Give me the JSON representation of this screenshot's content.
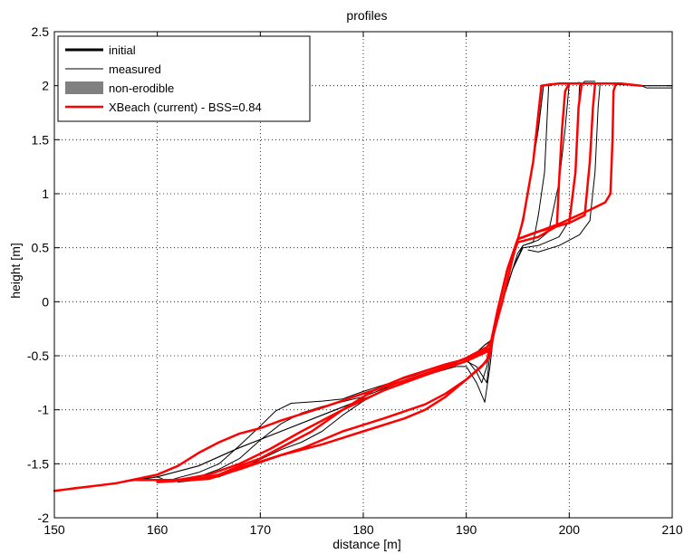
{
  "chart_data": {
    "type": "line",
    "title": "profiles",
    "xlabel": "distance [m]",
    "ylabel": "height [m]",
    "xlim": [
      150,
      210
    ],
    "ylim": [
      -2,
      2.5
    ],
    "xticks": [
      "150",
      "160",
      "170",
      "180",
      "190",
      "200",
      "210"
    ],
    "yticks": [
      "-2",
      "-1.5",
      "-1",
      "-0.5",
      "0",
      "0.5",
      "1",
      "1.5",
      "2",
      "2.5"
    ],
    "grid": true,
    "legend": {
      "placement": "top-left",
      "entries": [
        {
          "label": "initial",
          "style": "thick-black-line"
        },
        {
          "label": "measured",
          "style": "thin-black-line"
        },
        {
          "label": "non-erodible",
          "style": "gray-patch"
        },
        {
          "label": "XBeach (current) - BSS=0.84",
          "style": "red-line"
        }
      ]
    },
    "colors": {
      "initial": "#000000",
      "measured": "#000000",
      "non_erodible": "#808080",
      "xbeach": "#ff0000"
    },
    "series": [
      {
        "name": "initial",
        "kind": "initial",
        "points": [
          [
            150,
            -1.75
          ],
          [
            152,
            -1.73
          ],
          [
            156,
            -1.68
          ],
          [
            160,
            -1.62
          ],
          [
            164,
            -1.52
          ],
          [
            168,
            -1.35
          ],
          [
            172,
            -1.2
          ],
          [
            176,
            -1.05
          ],
          [
            180,
            -0.9
          ],
          [
            184,
            -0.75
          ],
          [
            188,
            -0.62
          ],
          [
            190,
            -0.55
          ],
          [
            191,
            -0.47
          ],
          [
            191.8,
            -0.4
          ],
          [
            192.5,
            -0.35
          ],
          [
            193.5,
            0
          ],
          [
            194.5,
            0.4
          ],
          [
            195.2,
            0.65
          ],
          [
            196,
            1
          ],
          [
            197,
            1.6
          ],
          [
            197.5,
            2
          ],
          [
            198,
            2.01
          ],
          [
            200,
            2.02
          ],
          [
            203,
            2.02
          ],
          [
            207,
            2
          ],
          [
            210,
            2
          ]
        ]
      },
      {
        "name": "measured",
        "kind": "measured",
        "points": [
          [
            150,
            -1.75
          ],
          [
            152,
            -1.72
          ],
          [
            156,
            -1.68
          ],
          [
            158,
            -1.65
          ],
          [
            160,
            -1.62
          ],
          [
            161,
            -1.66
          ],
          [
            162,
            -1.63
          ],
          [
            164,
            -1.58
          ],
          [
            166,
            -1.5
          ],
          [
            168,
            -1.33
          ],
          [
            170,
            -1.15
          ],
          [
            171.5,
            -1.01
          ],
          [
            173,
            -0.94
          ],
          [
            176,
            -0.92
          ],
          [
            178,
            -0.9
          ],
          [
            180,
            -0.83
          ],
          [
            182,
            -0.77
          ],
          [
            185,
            -0.68
          ],
          [
            188,
            -0.58
          ],
          [
            190,
            -0.53
          ],
          [
            191,
            -0.65
          ],
          [
            191.5,
            -0.75
          ],
          [
            192,
            -0.6
          ],
          [
            192.5,
            -0.3
          ],
          [
            193.5,
            0
          ],
          [
            194.5,
            0.3
          ],
          [
            195,
            0.45
          ],
          [
            195.5,
            0.52
          ],
          [
            196.5,
            0.55
          ],
          [
            197,
            0.8
          ],
          [
            197.6,
            1.2
          ],
          [
            198,
            2
          ],
          [
            198.5,
            2.01
          ]
        ]
      },
      {
        "name": "measured",
        "kind": "measured",
        "points": [
          [
            160,
            -1.65
          ],
          [
            162,
            -1.65
          ],
          [
            164,
            -1.62
          ],
          [
            166,
            -1.55
          ],
          [
            168,
            -1.45
          ],
          [
            170,
            -1.28
          ],
          [
            172,
            -1.13
          ],
          [
            174,
            -1.03
          ],
          [
            176,
            -0.97
          ],
          [
            180,
            -0.88
          ],
          [
            184,
            -0.73
          ],
          [
            188,
            -0.6
          ],
          [
            190,
            -0.55
          ],
          [
            191,
            -0.6
          ],
          [
            192,
            -0.75
          ],
          [
            192.5,
            -0.3
          ],
          [
            193.5,
            0
          ],
          [
            194.5,
            0.3
          ],
          [
            195.5,
            0.52
          ],
          [
            197,
            0.57
          ],
          [
            198,
            0.65
          ],
          [
            199,
            1.1
          ],
          [
            199.6,
            1.6
          ],
          [
            200,
            2.02
          ],
          [
            201,
            2.03
          ]
        ]
      },
      {
        "name": "measured",
        "kind": "measured",
        "points": [
          [
            162,
            -1.67
          ],
          [
            164,
            -1.65
          ],
          [
            166,
            -1.62
          ],
          [
            168,
            -1.55
          ],
          [
            170,
            -1.46
          ],
          [
            172,
            -1.37
          ],
          [
            174,
            -1.3
          ],
          [
            176,
            -1.2
          ],
          [
            178,
            -1.05
          ],
          [
            180,
            -0.92
          ],
          [
            182,
            -0.82
          ],
          [
            186,
            -0.68
          ],
          [
            189,
            -0.6
          ],
          [
            190,
            -0.6
          ],
          [
            191,
            -0.75
          ],
          [
            191.8,
            -0.93
          ],
          [
            192.3,
            -0.6
          ],
          [
            192.6,
            -0.35
          ],
          [
            193.5,
            0
          ],
          [
            194.5,
            0.3
          ],
          [
            195.5,
            0.5
          ],
          [
            197,
            0.52
          ],
          [
            199,
            0.6
          ],
          [
            200,
            0.75
          ],
          [
            200.6,
            1.2
          ],
          [
            201,
            2
          ],
          [
            201.5,
            2.04
          ],
          [
            202.5,
            2.04
          ]
        ]
      },
      {
        "name": "measured",
        "kind": "measured",
        "points": [
          [
            196,
            0.48
          ],
          [
            197,
            0.46
          ],
          [
            199,
            0.52
          ],
          [
            201,
            0.62
          ],
          [
            202,
            0.75
          ],
          [
            202.5,
            1.2
          ],
          [
            202.8,
            1.8
          ],
          [
            203,
            2.02
          ],
          [
            204,
            2.02
          ],
          [
            207,
            2
          ],
          [
            207.5,
            1.98
          ],
          [
            210,
            1.98
          ]
        ]
      },
      {
        "name": "XBeach (current) - BSS=0.84",
        "kind": "xbeach",
        "points": [
          [
            150,
            -1.75
          ],
          [
            156,
            -1.68
          ],
          [
            160,
            -1.6
          ],
          [
            162,
            -1.52
          ],
          [
            164,
            -1.4
          ],
          [
            166,
            -1.3
          ],
          [
            168,
            -1.22
          ],
          [
            170,
            -1.17
          ],
          [
            172,
            -1.1
          ],
          [
            176,
            -0.98
          ],
          [
            180,
            -0.85
          ],
          [
            184,
            -0.73
          ],
          [
            188,
            -0.6
          ],
          [
            190,
            -0.52
          ],
          [
            192,
            -0.42
          ],
          [
            192.5,
            -0.35
          ],
          [
            193.5,
            0
          ],
          [
            194.5,
            0.4
          ],
          [
            195.5,
            0.75
          ],
          [
            196.5,
            1.3
          ],
          [
            197.3,
            2
          ],
          [
            198,
            2.01
          ],
          [
            199,
            2.02
          ],
          [
            205,
            2.02
          ],
          [
            207,
            2
          ]
        ]
      },
      {
        "name": "XBeach (current) - BSS=0.84",
        "kind": "xbeach",
        "points": [
          [
            158,
            -1.65
          ],
          [
            162,
            -1.65
          ],
          [
            165,
            -1.6
          ],
          [
            168,
            -1.5
          ],
          [
            171,
            -1.36
          ],
          [
            174,
            -1.2
          ],
          [
            178,
            -1.0
          ],
          [
            182,
            -0.82
          ],
          [
            186,
            -0.68
          ],
          [
            190,
            -0.55
          ],
          [
            192.3,
            -0.45
          ],
          [
            193,
            -0.1
          ],
          [
            194,
            0.3
          ],
          [
            195,
            0.55
          ],
          [
            197,
            0.6
          ],
          [
            198.8,
            0.7
          ],
          [
            199,
            1.1
          ],
          [
            199.3,
            1.6
          ],
          [
            199.6,
            1.95
          ],
          [
            200,
            2.02
          ]
        ]
      },
      {
        "name": "XBeach (current) - BSS=0.84",
        "kind": "xbeach",
        "points": [
          [
            160,
            -1.66
          ],
          [
            164,
            -1.64
          ],
          [
            166,
            -1.6
          ],
          [
            168,
            -1.52
          ],
          [
            170,
            -1.45
          ],
          [
            172,
            -1.35
          ],
          [
            175,
            -1.2
          ],
          [
            178,
            -1.0
          ],
          [
            181,
            -0.82
          ],
          [
            184,
            -0.7
          ],
          [
            188,
            -0.58
          ],
          [
            190,
            -0.53
          ],
          [
            192.3,
            -0.43
          ],
          [
            193,
            -0.1
          ],
          [
            194,
            0.3
          ],
          [
            195,
            0.58
          ],
          [
            197,
            0.65
          ],
          [
            200,
            0.73
          ],
          [
            200.6,
            1.2
          ],
          [
            200.9,
            1.8
          ],
          [
            201.2,
            2.01
          ]
        ]
      },
      {
        "name": "XBeach (current) - BSS=0.84",
        "kind": "xbeach",
        "points": [
          [
            160,
            -1.66
          ],
          [
            165,
            -1.63
          ],
          [
            170,
            -1.48
          ],
          [
            174,
            -1.36
          ],
          [
            178,
            -1.2
          ],
          [
            182,
            -1.08
          ],
          [
            186,
            -0.95
          ],
          [
            188,
            -0.85
          ],
          [
            190,
            -0.72
          ],
          [
            191.5,
            -0.6
          ],
          [
            192.3,
            -0.5
          ],
          [
            193,
            -0.1
          ],
          [
            194,
            0.3
          ],
          [
            195,
            0.58
          ],
          [
            197,
            0.65
          ],
          [
            200,
            0.73
          ],
          [
            201.5,
            0.8
          ],
          [
            202,
            1.3
          ],
          [
            202.3,
            1.8
          ],
          [
            202.5,
            2.01
          ]
        ]
      },
      {
        "name": "XBeach (current) - BSS=0.84",
        "kind": "xbeach",
        "points": [
          [
            160,
            -1.67
          ],
          [
            165,
            -1.64
          ],
          [
            168,
            -1.55
          ],
          [
            172,
            -1.42
          ],
          [
            176,
            -1.32
          ],
          [
            180,
            -1.2
          ],
          [
            184,
            -1.08
          ],
          [
            186,
            -1.0
          ],
          [
            188,
            -0.88
          ],
          [
            190,
            -0.72
          ],
          [
            192,
            -0.55
          ],
          [
            193,
            -0.1
          ],
          [
            194,
            0.3
          ],
          [
            195,
            0.58
          ],
          [
            197,
            0.65
          ],
          [
            199,
            0.72
          ],
          [
            202,
            0.85
          ],
          [
            203.5,
            0.92
          ],
          [
            204,
            1.0
          ],
          [
            204.2,
            1.5
          ],
          [
            204.3,
            1.95
          ],
          [
            204.5,
            2.01
          ]
        ]
      }
    ]
  }
}
